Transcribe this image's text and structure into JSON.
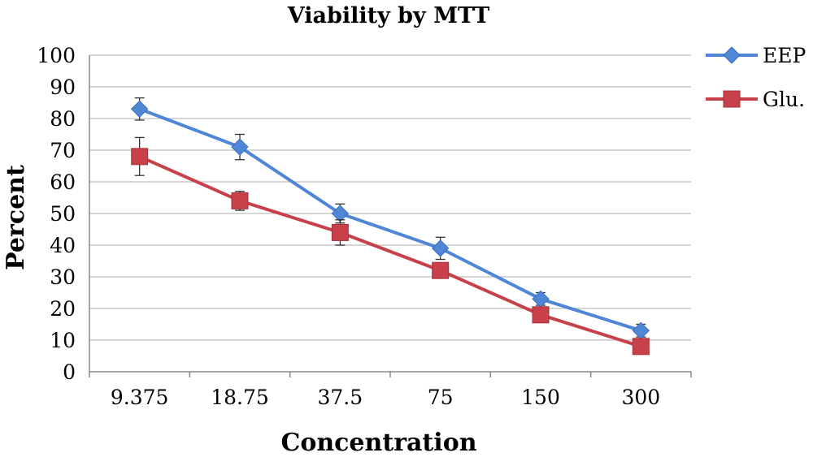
{
  "chart_data": {
    "type": "line",
    "title": "Viability by MTT",
    "xlabel": "Concentration",
    "ylabel": "Percent",
    "categories": [
      "9.375",
      "18.75",
      "37.5",
      "75",
      "150",
      "300"
    ],
    "ylim": [
      0,
      100
    ],
    "yticks": [
      0,
      10,
      20,
      30,
      40,
      50,
      60,
      70,
      80,
      90,
      100
    ],
    "grid": true,
    "legend": "right",
    "series": [
      {
        "name": "EEP",
        "values": [
          83,
          71,
          50,
          39,
          23,
          13
        ],
        "errors": [
          3.5,
          4,
          3,
          3.5,
          2,
          2
        ],
        "color": "#4f86d6",
        "marker": "diamond"
      },
      {
        "name": "Glu.",
        "values": [
          68,
          54,
          44,
          32,
          18,
          8
        ],
        "errors": [
          6,
          3,
          4,
          2,
          2,
          2
        ],
        "color": "#c8404a",
        "marker": "square"
      }
    ]
  }
}
